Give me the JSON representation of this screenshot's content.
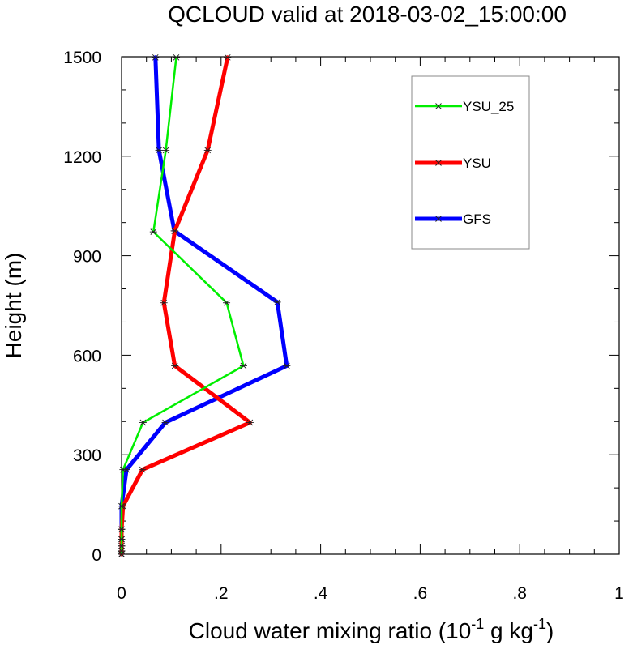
{
  "chart_data": {
    "type": "line",
    "title": "QCLOUD valid at 2018-03-02_15:00:00",
    "xlabel": "Cloud water mixing ratio (10",
    "xlabel_exp1": "-1",
    "xlabel_mid": " g kg",
    "xlabel_exp2": "-1",
    "xlabel_end": ")",
    "ylabel": "Height (m)",
    "xlim": [
      0,
      1
    ],
    "ylim": [
      0,
      1500
    ],
    "x_ticks": [
      {
        "value": 0,
        "label": "0"
      },
      {
        "value": 0.2,
        "label": ".2"
      },
      {
        "value": 0.4,
        "label": ".4"
      },
      {
        "value": 0.6,
        "label": ".6"
      },
      {
        "value": 0.8,
        "label": ".8"
      },
      {
        "value": 1,
        "label": "1"
      }
    ],
    "y_ticks": [
      {
        "value": 0,
        "label": "0"
      },
      {
        "value": 300,
        "label": "300"
      },
      {
        "value": 600,
        "label": "600"
      },
      {
        "value": 900,
        "label": "900"
      },
      {
        "value": 1200,
        "label": "1200"
      },
      {
        "value": 1500,
        "label": "1500"
      }
    ],
    "grid": false,
    "legend_position": "top-right",
    "series": [
      {
        "name": "YSU_25",
        "color": "#00ee00",
        "points": [
          {
            "x": 0.0,
            "y": 0
          },
          {
            "x": 0.0,
            "y": 10
          },
          {
            "x": 0.0,
            "y": 25
          },
          {
            "x": 0.0,
            "y": 45
          },
          {
            "x": 0.0,
            "y": 75
          },
          {
            "x": 0.0,
            "y": 145
          },
          {
            "x": 0.003,
            "y": 255
          },
          {
            "x": 0.043,
            "y": 397
          },
          {
            "x": 0.245,
            "y": 568
          },
          {
            "x": 0.211,
            "y": 758
          },
          {
            "x": 0.064,
            "y": 972
          },
          {
            "x": 0.089,
            "y": 1218
          },
          {
            "x": 0.11,
            "y": 1498
          }
        ]
      },
      {
        "name": "YSU",
        "color": "#ff0000",
        "points": [
          {
            "x": 0.0,
            "y": 0
          },
          {
            "x": 0.0,
            "y": 10
          },
          {
            "x": 0.0,
            "y": 25
          },
          {
            "x": 0.0,
            "y": 45
          },
          {
            "x": 0.0,
            "y": 75
          },
          {
            "x": 0.003,
            "y": 145
          },
          {
            "x": 0.042,
            "y": 255
          },
          {
            "x": 0.258,
            "y": 397
          },
          {
            "x": 0.107,
            "y": 568
          },
          {
            "x": 0.085,
            "y": 758
          },
          {
            "x": 0.107,
            "y": 975
          },
          {
            "x": 0.173,
            "y": 1218
          },
          {
            "x": 0.213,
            "y": 1498
          }
        ]
      },
      {
        "name": "GFS",
        "color": "#0000ff",
        "points": [
          {
            "x": 0.0,
            "y": 0
          },
          {
            "x": 0.0,
            "y": 10
          },
          {
            "x": 0.0,
            "y": 25
          },
          {
            "x": 0.0,
            "y": 45
          },
          {
            "x": 0.0,
            "y": 75
          },
          {
            "x": 0.0,
            "y": 145
          },
          {
            "x": 0.01,
            "y": 255
          },
          {
            "x": 0.088,
            "y": 397
          },
          {
            "x": 0.332,
            "y": 568
          },
          {
            "x": 0.313,
            "y": 760
          },
          {
            "x": 0.106,
            "y": 975
          },
          {
            "x": 0.075,
            "y": 1218
          },
          {
            "x": 0.068,
            "y": 1498
          }
        ]
      }
    ]
  }
}
